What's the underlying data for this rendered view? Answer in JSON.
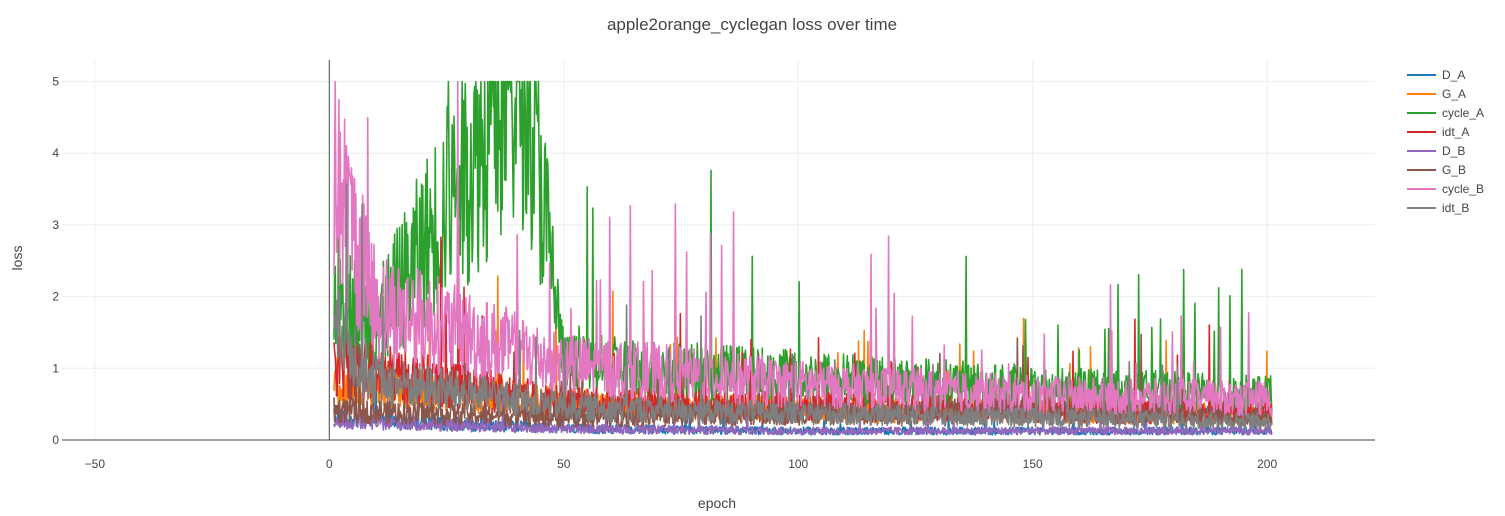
{
  "chart_data": {
    "type": "line",
    "title": "apple2orange_cyclegan loss over time",
    "xlabel": "epoch",
    "ylabel": "loss",
    "xlim": [
      -57,
      223
    ],
    "ylim": [
      0,
      5.3
    ],
    "xticks": [
      -50,
      0,
      50,
      100,
      150,
      200
    ],
    "yticks": [
      0,
      1,
      2,
      3,
      4,
      5
    ],
    "grid": true,
    "legend_position": "top-right",
    "x_range": [
      1,
      201
    ],
    "series": [
      {
        "name": "D_A",
        "color": "#1f77b4",
        "approx_values": [
          [
            1,
            0.3
          ],
          [
            50,
            0.15
          ],
          [
            100,
            0.12
          ],
          [
            150,
            0.12
          ],
          [
            201,
            0.12
          ]
        ]
      },
      {
        "name": "G_A",
        "color": "#ff7f0e",
        "approx_values": [
          [
            1,
            0.8
          ],
          [
            50,
            0.5
          ],
          [
            100,
            0.4
          ],
          [
            150,
            0.4
          ],
          [
            201,
            0.35
          ]
        ]
      },
      {
        "name": "cycle_A",
        "color": "#2ca02c",
        "approx_values": [
          [
            1,
            2.0
          ],
          [
            10,
            1.5
          ],
          [
            42,
            5.0
          ],
          [
            50,
            1.0
          ],
          [
            100,
            0.85
          ],
          [
            150,
            0.7
          ],
          [
            201,
            0.6
          ]
        ]
      },
      {
        "name": "idt_A",
        "color": "#d62728",
        "approx_values": [
          [
            1,
            1.0
          ],
          [
            50,
            0.5
          ],
          [
            100,
            0.45
          ],
          [
            150,
            0.4
          ],
          [
            201,
            0.35
          ]
        ]
      },
      {
        "name": "D_B",
        "color": "#9467bd",
        "approx_values": [
          [
            1,
            0.25
          ],
          [
            50,
            0.15
          ],
          [
            100,
            0.12
          ],
          [
            150,
            0.12
          ],
          [
            201,
            0.12
          ]
        ]
      },
      {
        "name": "G_B",
        "color": "#8c564b",
        "approx_values": [
          [
            1,
            0.4
          ],
          [
            50,
            0.3
          ],
          [
            100,
            0.35
          ],
          [
            150,
            0.4
          ],
          [
            201,
            0.3
          ]
        ]
      },
      {
        "name": "cycle_B",
        "color": "#e377c2",
        "approx_values": [
          [
            1,
            3.5
          ],
          [
            10,
            1.8
          ],
          [
            50,
            1.0
          ],
          [
            100,
            0.75
          ],
          [
            150,
            0.6
          ],
          [
            201,
            0.55
          ]
        ]
      },
      {
        "name": "idt_B",
        "color": "#7f7f7f",
        "approx_values": [
          [
            1,
            1.5
          ],
          [
            10,
            0.8
          ],
          [
            50,
            0.45
          ],
          [
            100,
            0.35
          ],
          [
            150,
            0.3
          ],
          [
            201,
            0.25
          ]
        ]
      }
    ]
  }
}
